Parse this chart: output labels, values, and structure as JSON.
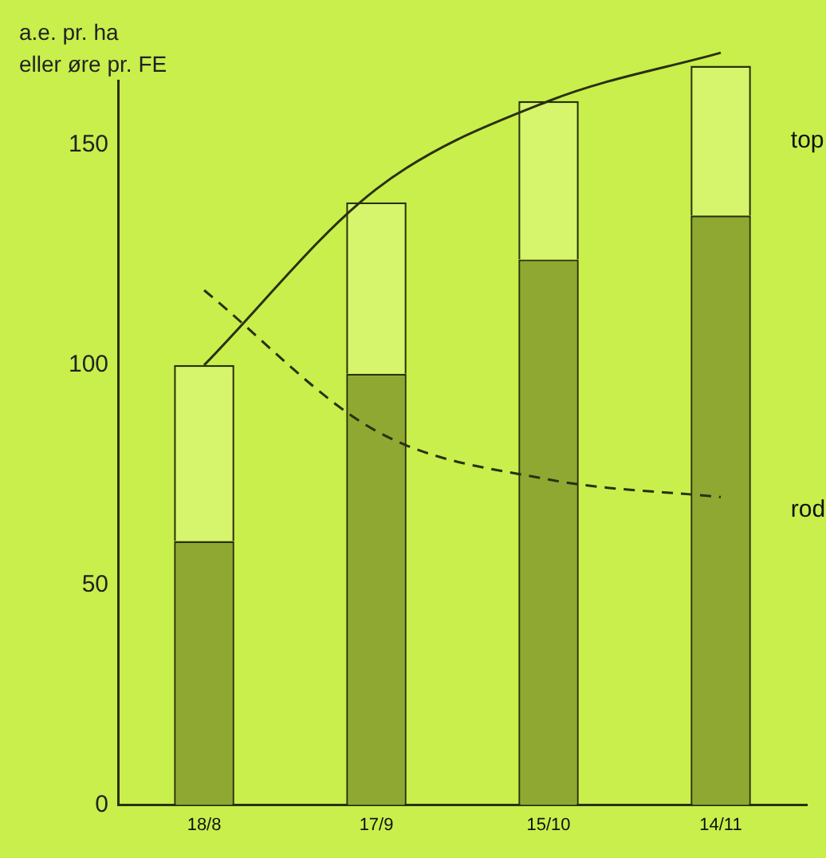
{
  "chart_data": {
    "type": "bar",
    "ylabel": "a.e. pr. ha\neller øre pr. FE",
    "categories": [
      "18/8",
      "17/9",
      "15/10",
      "14/11"
    ],
    "stacked": true,
    "series": [
      {
        "name": "rod",
        "color": "#8fa832",
        "values": [
          60,
          98,
          124,
          134
        ]
      },
      {
        "name": "top",
        "color": "#d6f56c",
        "values": [
          40,
          39,
          36,
          34
        ]
      },
      {
        "type": "line",
        "color": "#2a3010",
        "line_style": "solid",
        "values": [
          100,
          140,
          160,
          171
        ]
      },
      {
        "type": "line",
        "color": "#2a3010",
        "line_style": "dashed",
        "values": [
          117,
          85,
          74,
          70
        ]
      }
    ],
    "ylim": [
      0,
      175
    ],
    "yticks": [
      0,
      50,
      100,
      150
    ],
    "grid": false,
    "legend": false,
    "marker": "none"
  }
}
